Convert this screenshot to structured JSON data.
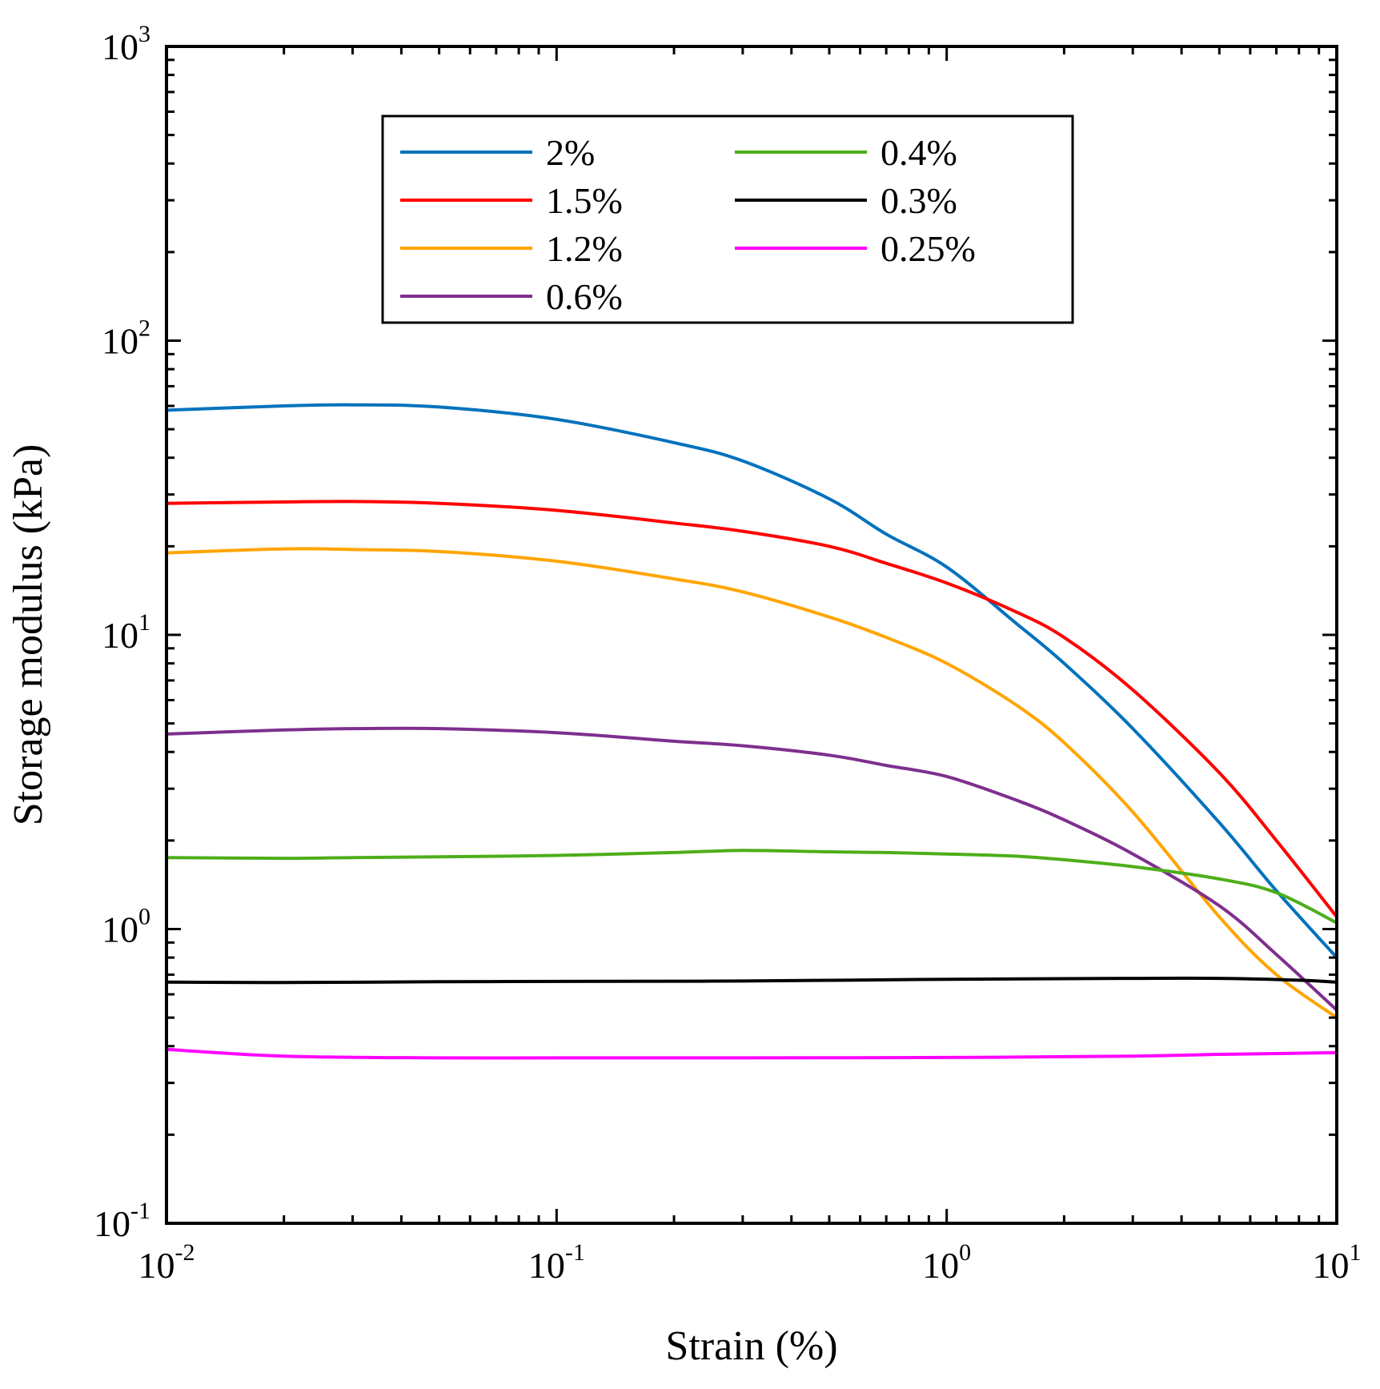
{
  "chart_data": {
    "type": "line",
    "title": "",
    "xlabel": "Strain (%)",
    "ylabel": "Storage modulus (kPa)",
    "xscale": "log",
    "yscale": "log",
    "xlim": [
      0.01,
      10
    ],
    "ylim": [
      0.1,
      1000
    ],
    "x_ticks": [
      {
        "base": "10",
        "exp": "-2",
        "value": 0.01
      },
      {
        "base": "10",
        "exp": "-1",
        "value": 0.1
      },
      {
        "base": "10",
        "exp": "0",
        "value": 1
      },
      {
        "base": "10",
        "exp": "1",
        "value": 10
      }
    ],
    "y_ticks": [
      {
        "base": "10",
        "exp": "-1",
        "value": 0.1
      },
      {
        "base": "10",
        "exp": "0",
        "value": 1
      },
      {
        "base": "10",
        "exp": "1",
        "value": 10
      },
      {
        "base": "10",
        "exp": "2",
        "value": 100
      },
      {
        "base": "10",
        "exp": "3",
        "value": 1000
      }
    ],
    "grid": false,
    "legend_position": "top-center",
    "legend_columns": 2,
    "series": [
      {
        "name": "2%",
        "color": "#0072BD",
        "x": [
          0.01,
          0.02,
          0.03,
          0.05,
          0.1,
          0.2,
          0.3,
          0.5,
          0.7,
          1.0,
          1.5,
          2,
          3,
          5,
          7,
          10
        ],
        "y": [
          58,
          60,
          60.5,
          59.5,
          54,
          45,
          39,
          29,
          22,
          17,
          11,
          8,
          4.8,
          2.3,
          1.35,
          0.8
        ]
      },
      {
        "name": "1.5%",
        "color": "#FF0000",
        "x": [
          0.01,
          0.02,
          0.03,
          0.05,
          0.1,
          0.2,
          0.3,
          0.5,
          0.7,
          1.0,
          1.5,
          2,
          3,
          5,
          7,
          10
        ],
        "y": [
          28,
          28.3,
          28.4,
          28,
          26.5,
          24,
          22.5,
          20,
          17.5,
          15,
          12,
          9.8,
          6.5,
          3.4,
          2.0,
          1.1
        ]
      },
      {
        "name": "1.2%",
        "color": "#FFA500",
        "x": [
          0.01,
          0.02,
          0.03,
          0.05,
          0.1,
          0.2,
          0.3,
          0.5,
          0.7,
          1.0,
          1.5,
          2,
          3,
          5,
          7,
          10
        ],
        "y": [
          19,
          19.6,
          19.5,
          19.2,
          17.8,
          15.5,
          14,
          11.5,
          9.8,
          8,
          5.8,
          4.3,
          2.5,
          1.1,
          0.7,
          0.5
        ]
      },
      {
        "name": "0.6%",
        "color": "#7E2F8E",
        "x": [
          0.01,
          0.02,
          0.03,
          0.05,
          0.1,
          0.2,
          0.3,
          0.5,
          0.7,
          1.0,
          1.5,
          2,
          3,
          5,
          7,
          10
        ],
        "y": [
          4.6,
          4.75,
          4.8,
          4.8,
          4.65,
          4.35,
          4.2,
          3.9,
          3.6,
          3.3,
          2.75,
          2.35,
          1.8,
          1.2,
          0.82,
          0.53
        ]
      },
      {
        "name": "0.4%",
        "color": "#4DAE1A",
        "x": [
          0.01,
          0.02,
          0.03,
          0.05,
          0.1,
          0.2,
          0.3,
          0.5,
          0.7,
          1.0,
          1.5,
          2,
          3,
          5,
          7,
          10
        ],
        "y": [
          1.75,
          1.74,
          1.75,
          1.76,
          1.78,
          1.82,
          1.85,
          1.83,
          1.82,
          1.8,
          1.77,
          1.72,
          1.63,
          1.48,
          1.33,
          1.05
        ]
      },
      {
        "name": "0.3%",
        "color": "#000000",
        "x": [
          0.01,
          0.02,
          0.05,
          0.1,
          0.3,
          1.0,
          3,
          5,
          8,
          10
        ],
        "y": [
          0.66,
          0.658,
          0.662,
          0.664,
          0.666,
          0.675,
          0.68,
          0.68,
          0.67,
          0.66
        ]
      },
      {
        "name": "0.25%",
        "color": "#FF00FF",
        "x": [
          0.01,
          0.02,
          0.05,
          0.1,
          0.3,
          1.0,
          3,
          5,
          10
        ],
        "y": [
          0.39,
          0.37,
          0.365,
          0.365,
          0.365,
          0.366,
          0.37,
          0.375,
          0.38
        ]
      }
    ]
  }
}
